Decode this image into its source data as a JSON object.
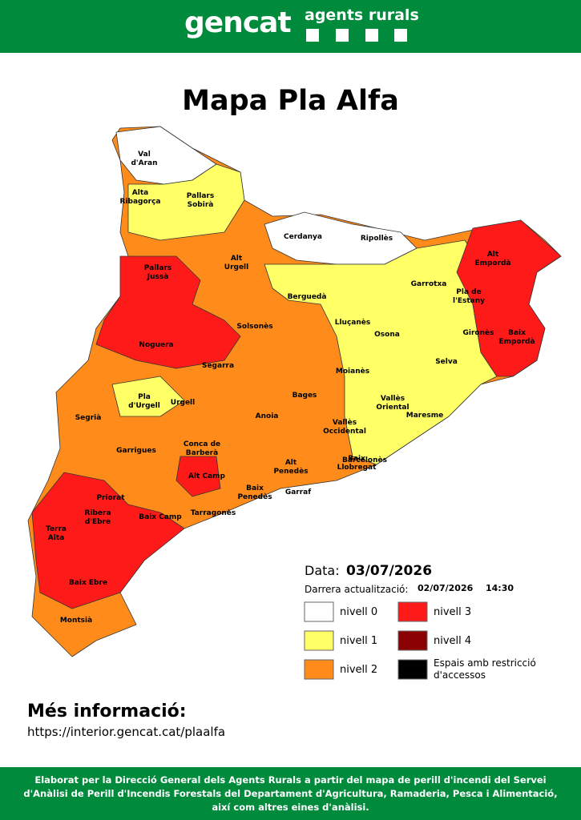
{
  "header": {
    "logo": "gencat",
    "unit": "agents rurals"
  },
  "title": "Mapa Pla Alfa",
  "map": {
    "labels": [
      [
        "Val",
        "d'Aran"
      ],
      [
        "Pallars",
        "Sobirà"
      ],
      [
        "Alta",
        "Ribagorça"
      ],
      [
        "Cerdanya"
      ],
      [
        "Ripollès"
      ],
      [
        "Alt",
        "Urgell"
      ],
      [
        "Pallars",
        "Jussà"
      ],
      [
        "Alt",
        "Empordà"
      ],
      [
        "Garrotxa"
      ],
      [
        "Pla de",
        "l'Estany"
      ],
      [
        "Berguedà"
      ],
      [
        "Solsonès"
      ],
      [
        "Lluçanès"
      ],
      [
        "Osona"
      ],
      [
        "Gironès"
      ],
      [
        "Baix",
        "Empordà"
      ],
      [
        "Noguera"
      ],
      [
        "Selva"
      ],
      [
        "Moianès"
      ],
      [
        "Segarra"
      ],
      [
        "Pla",
        "d'Urgell"
      ],
      [
        "Urgell"
      ],
      [
        "Vallès",
        "Oriental"
      ],
      [
        "Segrià"
      ],
      [
        "Bages"
      ],
      [
        "Anoia"
      ],
      [
        "Vallès",
        "Occidental"
      ],
      [
        "Maresme"
      ],
      [
        "Garrigues"
      ],
      [
        "Conca de",
        "Barberà"
      ],
      [
        "Alt",
        "Penedès"
      ],
      [
        "Baix",
        "Llobregat"
      ],
      [
        "Barcelonès"
      ],
      [
        "Alt Camp"
      ],
      [
        "Priorat"
      ],
      [
        "Baix",
        "Penedès"
      ],
      [
        "Garraf"
      ],
      [
        "Ribera",
        "d'Ebre"
      ],
      [
        "Terra",
        "Alta"
      ],
      [
        "Baix Camp"
      ],
      [
        "Tarragonès"
      ],
      [
        "Baix Ebre"
      ],
      [
        "Montsià"
      ]
    ]
  },
  "legend": {
    "date_label": "Data:",
    "date": "03/07/2026",
    "updated_label": "Darrera actualització:",
    "updated_date": "02/07/2026",
    "updated_time": "14:30",
    "items": [
      {
        "label": "nivell 0",
        "color": "#ffffff"
      },
      {
        "label": "nivell 3",
        "color": "#ff1a1a"
      },
      {
        "label": "nivell 1",
        "color": "#ffff66"
      },
      {
        "label": "nivell 4",
        "color": "#8b0000"
      },
      {
        "label": "nivell 2",
        "color": "#ff8c1a"
      },
      {
        "label": "Espais amb restricció d'accessos",
        "color": "#000000"
      }
    ]
  },
  "info": {
    "heading": "Més informació:",
    "url": "https://interior.gencat.cat/plaalfa"
  },
  "footer": "Elaborat per la Direcció General dels Agents Rurals a partir del mapa de perill d'incendi del Servei d'Anàlisi de Perill d'Incendis Forestals del Departament d'Agricultura, Ramaderia, Pesca i Alimentació, així com altres eines d'anàlisi."
}
